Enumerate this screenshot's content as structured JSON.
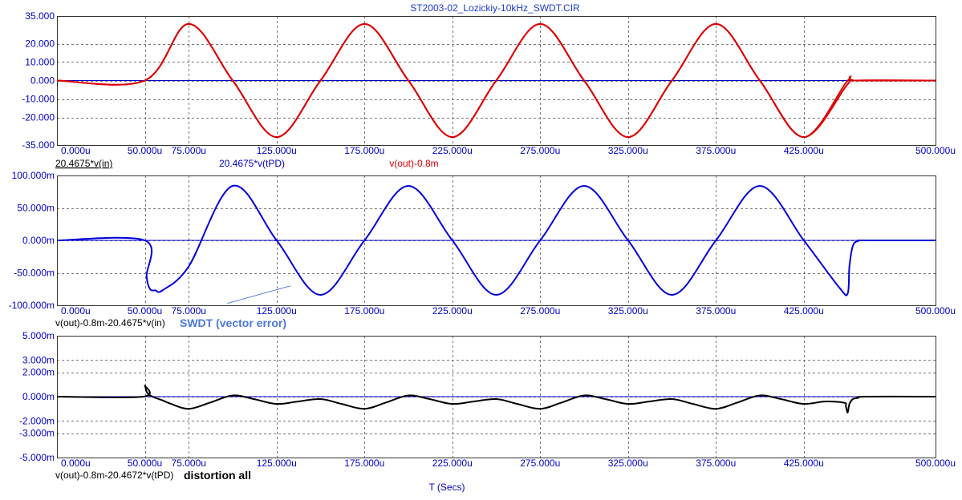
{
  "colors": {
    "axis_text": "#0000c8",
    "red_trace": "#dd0000",
    "blue_trace": "#0000dd",
    "zero_line": "#0000cc",
    "black_trace": "#000000",
    "grid": "#777777",
    "annotation": "#4a78d8"
  },
  "chart_data": [
    {
      "type": "line",
      "title": "ST2003-02_Lozickiy-10kHz_SWDT.CIR",
      "xlabel": "",
      "ylabel": "",
      "xlim": [
        0,
        500
      ],
      "ylim": [
        -35,
        35
      ],
      "grid": true,
      "x_tick_labels": [
        "0.000u",
        "50.000u",
        "75.000u",
        "125.000u",
        "175.000u",
        "225.000u",
        "275.000u",
        "325.000u",
        "375.000u",
        "425.000u",
        "500.000u"
      ],
      "x_tick_values": [
        0,
        50,
        75,
        125,
        175,
        225,
        275,
        325,
        375,
        425,
        500
      ],
      "y_tick_labels": [
        "35.000",
        "20.000",
        "10.000",
        "0.000",
        "-10.000",
        "-20.000",
        "-35.000"
      ],
      "y_tick_values": [
        35,
        20,
        10,
        0,
        -10,
        -20,
        -35
      ],
      "trace_labels": [
        "20.4675*v(in)",
        "20.4675*v(tPD)",
        "v(out)-0.8m"
      ],
      "series": [
        {
          "name": "20.4675*v(in)",
          "color": "#0000cc",
          "x": [
            0,
            500
          ],
          "y": [
            0,
            0
          ]
        },
        {
          "name": "20.4675*v(tPD)",
          "color": "#dd0000",
          "x": [
            0,
            50,
            75,
            100,
            125,
            150,
            175,
            200,
            225,
            250,
            275,
            300,
            325,
            350,
            375,
            400,
            425,
            450,
            455,
            500
          ],
          "y": [
            0,
            0,
            30.7,
            0,
            -30.7,
            0,
            30.7,
            0,
            -30.7,
            0,
            30.7,
            0,
            -30.7,
            0,
            30.7,
            0,
            -30.7,
            0,
            0,
            0
          ]
        },
        {
          "name": "v(out)-0.8m",
          "color": "#dd0000",
          "x": [
            0,
            50,
            75,
            100,
            125,
            150,
            175,
            200,
            225,
            250,
            275,
            300,
            325,
            350,
            375,
            400,
            425,
            450,
            455,
            500
          ],
          "y": [
            0,
            0,
            30.7,
            0,
            -30.7,
            0,
            30.7,
            0,
            -30.7,
            0,
            30.7,
            0,
            -30.7,
            0,
            30.7,
            0,
            -30.7,
            -2,
            0,
            0
          ]
        }
      ]
    },
    {
      "type": "line",
      "xlabel": "",
      "ylabel": "",
      "xlim": [
        0,
        500
      ],
      "ylim": [
        -100,
        100
      ],
      "grid": true,
      "x_tick_labels": [
        "0.000u",
        "50.000u",
        "75.000u",
        "125.000u",
        "175.000u",
        "225.000u",
        "275.000u",
        "325.000u",
        "375.000u",
        "425.000u",
        "500.000u"
      ],
      "x_tick_values": [
        0,
        50,
        75,
        125,
        175,
        225,
        275,
        325,
        375,
        425,
        500
      ],
      "y_tick_labels": [
        "100.000m",
        "50.000m",
        "0.000m",
        "-50.000m",
        "-100.000m"
      ],
      "y_tick_values": [
        100,
        50,
        0,
        -50,
        -100
      ],
      "trace_labels": [
        "v(out)-0.8m-20.4675*v(in)"
      ],
      "annotation": {
        "text": "SWDT (vector error)",
        "arrow_from": [
          97,
          -97
        ],
        "arrow_to": [
          133,
          -70
        ]
      },
      "series": [
        {
          "name": "zero",
          "color": "#0000cc",
          "x": [
            0,
            500
          ],
          "y": [
            0,
            0
          ]
        },
        {
          "name": "v(out)-0.8m-20.4675*v(in)",
          "color": "#0000dd",
          "x": [
            0,
            50,
            51,
            53,
            56,
            60,
            75,
            100,
            125,
            150,
            175,
            200,
            225,
            250,
            275,
            300,
            325,
            350,
            375,
            400,
            425,
            445,
            450,
            451,
            453,
            456,
            460,
            500
          ],
          "y": [
            0,
            0,
            -55,
            -75,
            -77,
            -77,
            -40,
            84,
            0,
            -84,
            0,
            84,
            0,
            -84,
            0,
            84,
            0,
            -84,
            0,
            84,
            0,
            -72,
            -82,
            -40,
            -8,
            -1,
            0,
            0
          ]
        }
      ]
    },
    {
      "type": "line",
      "xlabel": "T (Secs)",
      "ylabel": "",
      "xlim": [
        0,
        500
      ],
      "ylim": [
        -5,
        5
      ],
      "grid": true,
      "x_tick_labels": [
        "0.000u",
        "50.000u",
        "75.000u",
        "125.000u",
        "175.000u",
        "225.000u",
        "275.000u",
        "325.000u",
        "375.000u",
        "425.000u",
        "500.000u"
      ],
      "x_tick_values": [
        0,
        50,
        75,
        125,
        175,
        225,
        275,
        325,
        375,
        425,
        500
      ],
      "y_tick_labels": [
        "5.000m",
        "3.000m",
        "2.000m",
        "0.000m",
        "-2.000m",
        "-3.000m",
        "-5.000m"
      ],
      "y_tick_values": [
        5,
        3,
        2,
        0,
        -2,
        -3,
        -5
      ],
      "trace_labels": [
        "v(out)-0.8m-20.4672*v(tPD)"
      ],
      "annotation": {
        "text": "distortion all"
      },
      "series": [
        {
          "name": "zero",
          "color": "#0000cc",
          "x": [
            0,
            500
          ],
          "y": [
            0,
            0
          ]
        },
        {
          "name": "v(out)-0.8m-20.4672*v(tPD)",
          "color": "#000000",
          "x": [
            0,
            49,
            50,
            51,
            53,
            56,
            60,
            65,
            75,
            87,
            100,
            112,
            125,
            137,
            150,
            162,
            175,
            187,
            200,
            212,
            225,
            237,
            250,
            262,
            275,
            287,
            300,
            312,
            325,
            337,
            350,
            362,
            375,
            387,
            400,
            412,
            425,
            437,
            448,
            449,
            450,
            451,
            453,
            456,
            460,
            500
          ],
          "y": [
            0,
            0,
            0.9,
            0.4,
            0.1,
            -0.1,
            -0.3,
            -0.6,
            -1.0,
            -0.5,
            0.1,
            -0.2,
            -0.6,
            -0.4,
            -0.2,
            -0.6,
            -1.0,
            -0.5,
            0.1,
            -0.2,
            -0.6,
            -0.4,
            -0.2,
            -0.6,
            -1.0,
            -0.5,
            0.1,
            -0.2,
            -0.6,
            -0.4,
            -0.2,
            -0.6,
            -1.0,
            -0.5,
            0.1,
            -0.2,
            -0.6,
            -0.4,
            -0.5,
            -0.8,
            -1.3,
            -0.6,
            -0.2,
            -0.1,
            0,
            0
          ]
        }
      ]
    }
  ]
}
